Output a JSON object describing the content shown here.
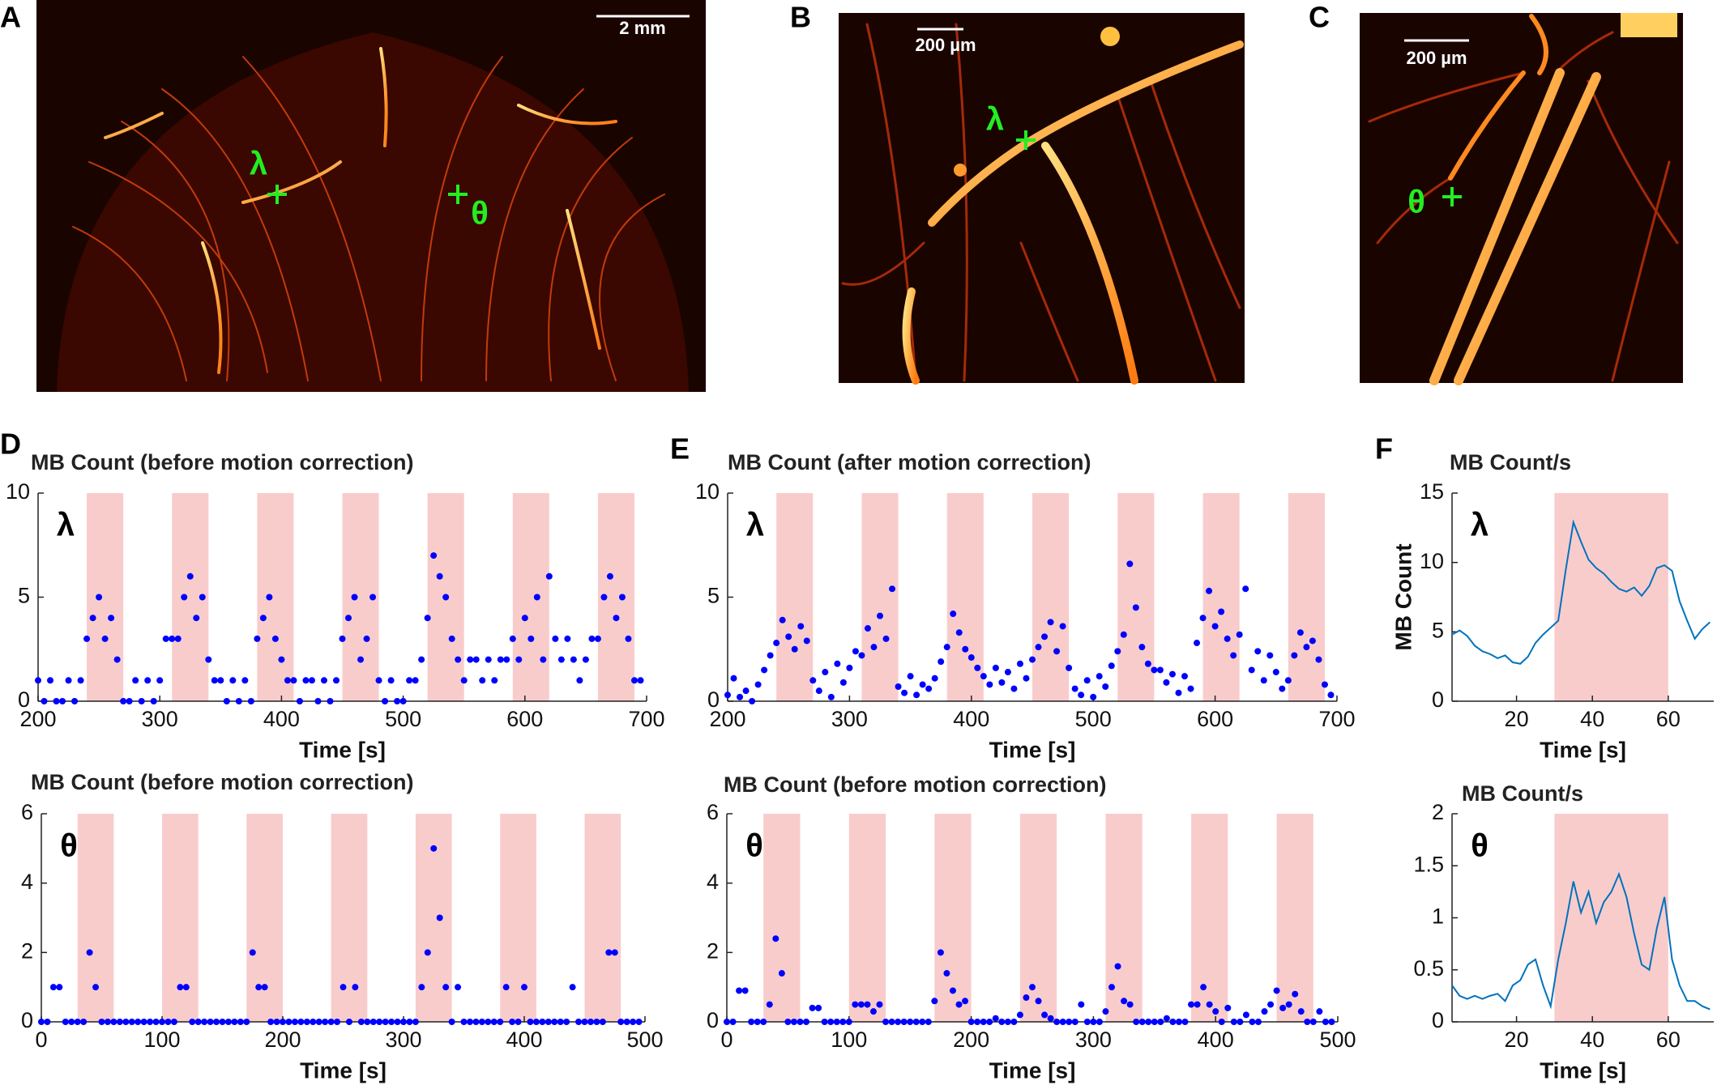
{
  "panel_labels": [
    "A",
    "B",
    "C",
    "D",
    "E",
    "F"
  ],
  "images": [
    {
      "scale_bar": "2 mm",
      "markers": [
        "λ",
        "θ"
      ]
    },
    {
      "scale_bar": "200 µm",
      "markers": [
        "λ"
      ]
    },
    {
      "scale_bar": "200 µm",
      "markers": [
        "θ"
      ]
    }
  ],
  "chart_data": [
    {
      "type": "scatter",
      "title": "MB Count (before motion correction)",
      "annotation": "λ",
      "xlabel": "Time [s]",
      "color": "#0000ff",
      "band_color": "#f9cccc",
      "xlim": [
        200,
        700
      ],
      "xticks": [
        200,
        300,
        400,
        500,
        600,
        700
      ],
      "ylim": [
        0,
        10
      ],
      "yticks": [
        0,
        5,
        10
      ],
      "bands": [
        [
          240,
          270
        ],
        [
          310,
          340
        ],
        [
          380,
          410
        ],
        [
          450,
          480
        ],
        [
          520,
          550
        ],
        [
          590,
          620
        ],
        [
          660,
          690
        ]
      ],
      "x": [
        200,
        205,
        210,
        215,
        220,
        225,
        230,
        235,
        240,
        245,
        250,
        255,
        260,
        265,
        270,
        275,
        280,
        285,
        290,
        295,
        300,
        305,
        310,
        315,
        320,
        325,
        330,
        335,
        340,
        345,
        350,
        355,
        360,
        365,
        370,
        375,
        380,
        385,
        390,
        395,
        400,
        405,
        410,
        415,
        420,
        425,
        430,
        435,
        440,
        445,
        450,
        455,
        460,
        465,
        470,
        475,
        480,
        485,
        490,
        495,
        500,
        505,
        510,
        515,
        520,
        525,
        530,
        535,
        540,
        545,
        550,
        555,
        560,
        565,
        570,
        575,
        580,
        585,
        590,
        595,
        600,
        605,
        610,
        615,
        620,
        625,
        630,
        635,
        640,
        645,
        650,
        655,
        660,
        665,
        670,
        675,
        680,
        685,
        690,
        695
      ],
      "values": [
        1,
        0,
        1,
        0,
        0,
        1,
        0,
        1,
        3,
        4,
        5,
        3,
        4,
        2,
        0,
        0,
        1,
        0,
        1,
        0,
        1,
        3,
        3,
        3,
        5,
        6,
        4,
        5,
        2,
        1,
        1,
        0,
        1,
        0,
        1,
        0,
        3,
        4,
        5,
        3,
        2,
        1,
        1,
        0,
        1,
        1,
        0,
        1,
        0,
        1,
        3,
        4,
        5,
        2,
        3,
        5,
        1,
        0,
        1,
        0,
        0,
        1,
        1,
        2,
        4,
        7,
        6,
        5,
        3,
        2,
        1,
        2,
        2,
        1,
        2,
        1,
        2,
        2,
        3,
        2,
        4,
        3,
        5,
        2,
        6,
        3,
        2,
        3,
        2,
        1,
        2,
        3,
        3,
        5,
        6,
        4,
        5,
        3,
        1,
        1
      ]
    },
    {
      "type": "scatter",
      "title": "MB Count (before motion correction)",
      "annotation": "θ",
      "xlabel": "Time [s]",
      "color": "#0000ff",
      "band_color": "#f9cccc",
      "xlim": [
        0,
        500
      ],
      "xticks": [
        0,
        100,
        200,
        300,
        400,
        500
      ],
      "ylim": [
        0,
        6
      ],
      "yticks": [
        0,
        2,
        4,
        6
      ],
      "bands": [
        [
          30,
          60
        ],
        [
          100,
          130
        ],
        [
          170,
          200
        ],
        [
          240,
          270
        ],
        [
          310,
          340
        ],
        [
          380,
          410
        ],
        [
          450,
          480
        ]
      ],
      "x": [
        0,
        5,
        10,
        15,
        20,
        25,
        30,
        35,
        40,
        45,
        50,
        55,
        60,
        65,
        70,
        75,
        80,
        85,
        90,
        95,
        100,
        105,
        110,
        115,
        120,
        125,
        130,
        135,
        140,
        145,
        150,
        155,
        160,
        165,
        170,
        175,
        180,
        185,
        190,
        195,
        200,
        205,
        210,
        215,
        220,
        225,
        230,
        235,
        240,
        245,
        250,
        255,
        260,
        265,
        270,
        275,
        280,
        285,
        290,
        295,
        300,
        305,
        310,
        315,
        320,
        325,
        330,
        335,
        340,
        345,
        350,
        355,
        360,
        365,
        370,
        375,
        380,
        385,
        390,
        395,
        400,
        405,
        410,
        415,
        420,
        425,
        430,
        435,
        440,
        445,
        450,
        455,
        460,
        465,
        470,
        475,
        480,
        485,
        490,
        495
      ],
      "values": [
        0,
        0,
        1,
        1,
        0,
        0,
        0,
        0,
        2,
        1,
        0,
        0,
        0,
        0,
        0,
        0,
        0,
        0,
        0,
        0,
        0,
        0,
        0,
        1,
        1,
        0,
        0,
        0,
        0,
        0,
        0,
        0,
        0,
        0,
        0,
        2,
        1,
        1,
        0,
        0,
        0,
        0,
        0,
        0,
        0,
        0,
        0,
        0,
        0,
        0,
        1,
        0,
        1,
        0,
        0,
        0,
        0,
        0,
        0,
        0,
        0,
        0,
        0,
        1,
        2,
        5,
        3,
        1,
        0,
        1,
        0,
        0,
        0,
        0,
        0,
        0,
        0,
        1,
        0,
        0,
        1,
        0,
        0,
        0,
        0,
        0,
        0,
        0,
        1,
        0,
        0,
        0,
        0,
        0,
        2,
        2,
        0,
        0,
        0,
        0
      ]
    },
    {
      "type": "scatter",
      "title": "MB Count (after motion correction)",
      "annotation": "λ",
      "xlabel": "Time [s]",
      "color": "#0000ff",
      "band_color": "#f9cccc",
      "xlim": [
        200,
        700
      ],
      "xticks": [
        200,
        300,
        400,
        500,
        600,
        700
      ],
      "ylim": [
        0,
        10
      ],
      "yticks": [
        0,
        5,
        10
      ],
      "bands": [
        [
          240,
          270
        ],
        [
          310,
          340
        ],
        [
          380,
          410
        ],
        [
          450,
          480
        ],
        [
          520,
          550
        ],
        [
          590,
          620
        ],
        [
          660,
          690
        ]
      ],
      "x": [
        200,
        205,
        210,
        215,
        220,
        225,
        230,
        235,
        240,
        245,
        250,
        255,
        260,
        265,
        270,
        275,
        280,
        285,
        290,
        295,
        300,
        305,
        310,
        315,
        320,
        325,
        330,
        335,
        340,
        345,
        350,
        355,
        360,
        365,
        370,
        375,
        380,
        385,
        390,
        395,
        400,
        405,
        410,
        415,
        420,
        425,
        430,
        435,
        440,
        445,
        450,
        455,
        460,
        465,
        470,
        475,
        480,
        485,
        490,
        495,
        500,
        505,
        510,
        515,
        520,
        525,
        530,
        535,
        540,
        545,
        550,
        555,
        560,
        565,
        570,
        575,
        580,
        585,
        590,
        595,
        600,
        605,
        610,
        615,
        620,
        625,
        630,
        635,
        640,
        645,
        650,
        655,
        660,
        665,
        670,
        675,
        680,
        685,
        690,
        695
      ],
      "values": [
        0.3,
        1.1,
        0.2,
        0.5,
        0,
        0.8,
        1.5,
        2.2,
        2.8,
        3.9,
        3.1,
        2.5,
        3.6,
        2.9,
        1.0,
        0.5,
        1.4,
        0.2,
        1.8,
        0.9,
        1.6,
        2.4,
        2.2,
        3.5,
        2.6,
        4.1,
        3.0,
        5.4,
        0.7,
        0.4,
        1.2,
        0.3,
        0.8,
        0.6,
        1.1,
        1.9,
        2.6,
        4.2,
        3.3,
        2.5,
        2.1,
        1.6,
        1.2,
        0.8,
        1.6,
        0.9,
        1.4,
        0.6,
        1.8,
        1.1,
        2.0,
        2.6,
        3.1,
        3.8,
        2.4,
        3.6,
        1.6,
        0.6,
        0.3,
        1.0,
        0.2,
        1.2,
        0.7,
        1.7,
        2.4,
        3.2,
        6.6,
        4.5,
        2.6,
        1.8,
        1.5,
        1.5,
        0.9,
        1.3,
        0.4,
        1.2,
        0.6,
        2.8,
        4.0,
        5.3,
        3.6,
        4.3,
        3.0,
        2.2,
        3.2,
        5.4,
        1.5,
        2.4,
        1.0,
        2.2,
        1.4,
        0.6,
        1.0,
        2.2,
        3.3,
        2.6,
        2.9,
        2.0,
        0.8,
        0.3
      ]
    },
    {
      "type": "scatter",
      "title": "MB Count (before motion correction)",
      "annotation": "θ",
      "xlabel": "Time [s]",
      "color": "#0000ff",
      "band_color": "#f9cccc",
      "xlim": [
        0,
        500
      ],
      "xticks": [
        0,
        100,
        200,
        300,
        400,
        500
      ],
      "ylim": [
        0,
        6
      ],
      "yticks": [
        0,
        2,
        4,
        6
      ],
      "bands": [
        [
          30,
          60
        ],
        [
          100,
          130
        ],
        [
          170,
          200
        ],
        [
          240,
          270
        ],
        [
          310,
          340
        ],
        [
          380,
          410
        ],
        [
          450,
          480
        ]
      ],
      "x": [
        0,
        5,
        10,
        15,
        20,
        25,
        30,
        35,
        40,
        45,
        50,
        55,
        60,
        65,
        70,
        75,
        80,
        85,
        90,
        95,
        100,
        105,
        110,
        115,
        120,
        125,
        130,
        135,
        140,
        145,
        150,
        155,
        160,
        165,
        170,
        175,
        180,
        185,
        190,
        195,
        200,
        205,
        210,
        215,
        220,
        225,
        230,
        235,
        240,
        245,
        250,
        255,
        260,
        265,
        270,
        275,
        280,
        285,
        290,
        295,
        300,
        305,
        310,
        315,
        320,
        325,
        330,
        335,
        340,
        345,
        350,
        355,
        360,
        365,
        370,
        375,
        380,
        385,
        390,
        395,
        400,
        405,
        410,
        415,
        420,
        425,
        430,
        435,
        440,
        445,
        450,
        455,
        460,
        465,
        470,
        475,
        480,
        485,
        490,
        495
      ],
      "values": [
        0,
        0,
        0.9,
        0.9,
        0,
        0,
        0,
        0.5,
        2.4,
        1.4,
        0,
        0,
        0,
        0,
        0.4,
        0.4,
        0,
        0,
        0,
        0,
        0,
        0.5,
        0.5,
        0.5,
        0.3,
        0.5,
        0,
        0,
        0,
        0,
        0,
        0,
        0,
        0,
        0.6,
        2.0,
        1.4,
        0.9,
        0.5,
        0.6,
        0,
        0,
        0,
        0,
        0.1,
        0,
        0,
        0,
        0.2,
        0.7,
        1.0,
        0.6,
        0.2,
        0.1,
        0,
        0,
        0,
        0,
        0.5,
        0,
        0,
        0,
        0.3,
        1.0,
        1.6,
        0.6,
        0.5,
        0,
        0,
        0,
        0,
        0,
        0.1,
        0,
        0,
        0,
        0.5,
        0.5,
        1.0,
        0.5,
        0.3,
        0,
        0.4,
        0,
        0,
        0.2,
        0,
        0,
        0.3,
        0.5,
        0.9,
        0.4,
        0.5,
        0.8,
        0.3,
        0,
        0,
        0.3,
        0,
        0
      ]
    },
    {
      "type": "line",
      "title": "MB Count/s",
      "annotation": "λ",
      "xlabel": "Time [s]",
      "ylabel": "MB Count",
      "color": "#0072bd",
      "band_color": "#f9cccc",
      "xlim": [
        3,
        72
      ],
      "xticks": [
        20,
        40,
        60
      ],
      "ylim": [
        0,
        15
      ],
      "yticks": [
        0,
        5,
        10,
        15
      ],
      "bands": [
        [
          30,
          60
        ]
      ],
      "x": [
        3,
        5,
        7,
        9,
        11,
        13,
        15,
        17,
        19,
        21,
        23,
        25,
        27,
        29,
        31,
        33,
        35,
        37,
        39,
        41,
        43,
        45,
        47,
        49,
        51,
        53,
        55,
        57,
        59,
        61,
        63,
        65,
        67,
        69,
        71
      ],
      "values": [
        4.8,
        5.1,
        4.7,
        4.0,
        3.6,
        3.4,
        3.1,
        3.3,
        2.8,
        2.7,
        3.2,
        4.2,
        4.8,
        5.3,
        5.8,
        9.5,
        12.9,
        11.5,
        10.2,
        9.6,
        9.2,
        8.6,
        8.1,
        7.9,
        8.2,
        7.6,
        8.3,
        9.6,
        9.8,
        9.4,
        7.2,
        5.8,
        4.5,
        5.2,
        5.7
      ]
    },
    {
      "type": "line",
      "title": "MB Count/s",
      "annotation": "θ",
      "xlabel": "Time [s]",
      "color": "#0072bd",
      "band_color": "#f9cccc",
      "xlim": [
        3,
        72
      ],
      "xticks": [
        20,
        40,
        60
      ],
      "ylim": [
        0,
        2
      ],
      "yticks": [
        0,
        0.5,
        1,
        1.5,
        2
      ],
      "bands": [
        [
          30,
          60
        ]
      ],
      "x": [
        3,
        5,
        7,
        9,
        11,
        13,
        15,
        17,
        19,
        21,
        23,
        25,
        27,
        29,
        31,
        33,
        35,
        37,
        39,
        41,
        43,
        45,
        47,
        49,
        51,
        53,
        55,
        57,
        59,
        61,
        63,
        65,
        67,
        69,
        71
      ],
      "values": [
        0.35,
        0.25,
        0.22,
        0.25,
        0.22,
        0.25,
        0.27,
        0.2,
        0.35,
        0.4,
        0.55,
        0.6,
        0.35,
        0.15,
        0.6,
        0.95,
        1.35,
        1.05,
        1.25,
        0.95,
        1.15,
        1.25,
        1.42,
        1.2,
        0.85,
        0.55,
        0.5,
        0.9,
        1.2,
        0.6,
        0.35,
        0.2,
        0.2,
        0.15,
        0.12
      ]
    }
  ]
}
